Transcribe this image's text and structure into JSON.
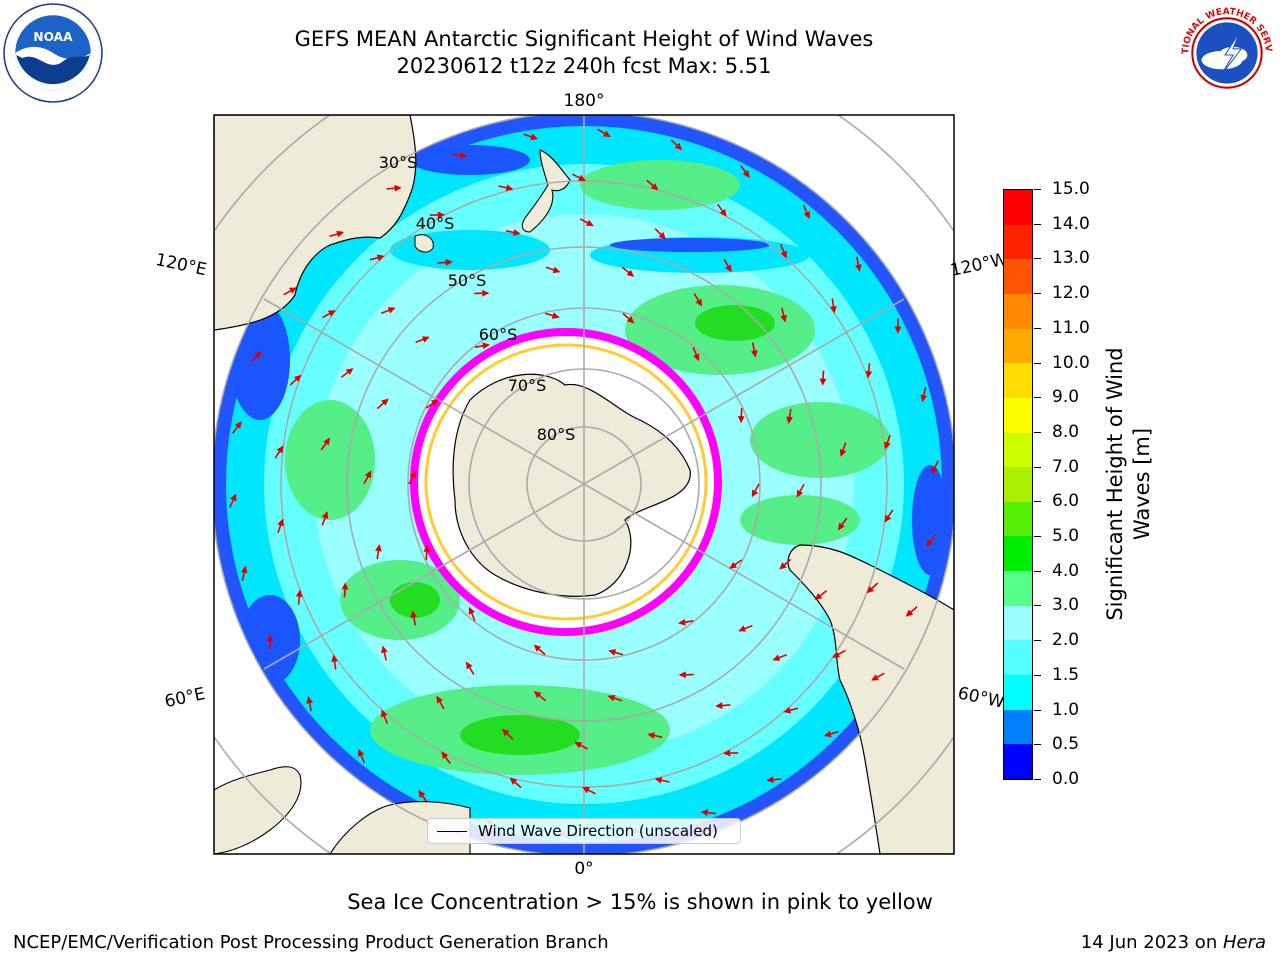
{
  "header": {
    "title_line_1": "GEFS MEAN Antarctic Significant Height of Wind Waves",
    "title_line_2": "20230612 t12z 240h fcst   Max: 5.51"
  },
  "logos": {
    "left": {
      "icon": "noaa-logo",
      "text_top": "NATIONAL OCEANIC AND ATMOSPHERIC ADMINISTRATION",
      "text_bottom": "U.S. DEPARTMENT OF COMMERCE",
      "center": "NOAA"
    },
    "right": {
      "icon": "nws-logo",
      "text": "NATIONAL WEATHER SERVICE"
    }
  },
  "map": {
    "projection": "South Polar Stereographic",
    "longitude_labels": {
      "top": "180°",
      "bottom": "0°",
      "upper_left": "120°E",
      "upper_right": "120°W",
      "lower_left": "60°E",
      "lower_right": "60°W"
    },
    "latitude_labels": [
      "30°S",
      "40°S",
      "50°S",
      "60°S",
      "70°S",
      "80°S"
    ],
    "colors": {
      "land": "#efebd9",
      "ocean_outside": "#ffffff",
      "grid": "#aaaaaa",
      "ice_edge": "#ff00ff",
      "arrow": "#e00000"
    }
  },
  "colorbar": {
    "label": "Significant Height of Wind Waves [m]",
    "ticks": [
      "0.0",
      "0.5",
      "1.0",
      "1.5",
      "2.0",
      "3.0",
      "4.0",
      "5.0",
      "6.0",
      "7.0",
      "8.0",
      "9.0",
      "10.0",
      "11.0",
      "12.0",
      "13.0",
      "14.0",
      "15.0"
    ],
    "colors": [
      "#0000ff",
      "#0080ff",
      "#00ffff",
      "#55ffff",
      "#99ffff",
      "#55ff88",
      "#00ee00",
      "#55ee00",
      "#aaee00",
      "#ccff00",
      "#ffff00",
      "#ffdd00",
      "#ffaa00",
      "#ff8800",
      "#ff5500",
      "#ff2200",
      "#ff0000"
    ]
  },
  "legend": {
    "label": "Wind Wave Direction (unscaled)"
  },
  "note": "Sea Ice Concentration > 15% is shown in pink to yellow",
  "footer": {
    "left": "NCEP/EMC/Verification Post Processing Product Generation Branch",
    "right_date": "14 Jun 2023 on ",
    "right_machine": "Hera"
  }
}
